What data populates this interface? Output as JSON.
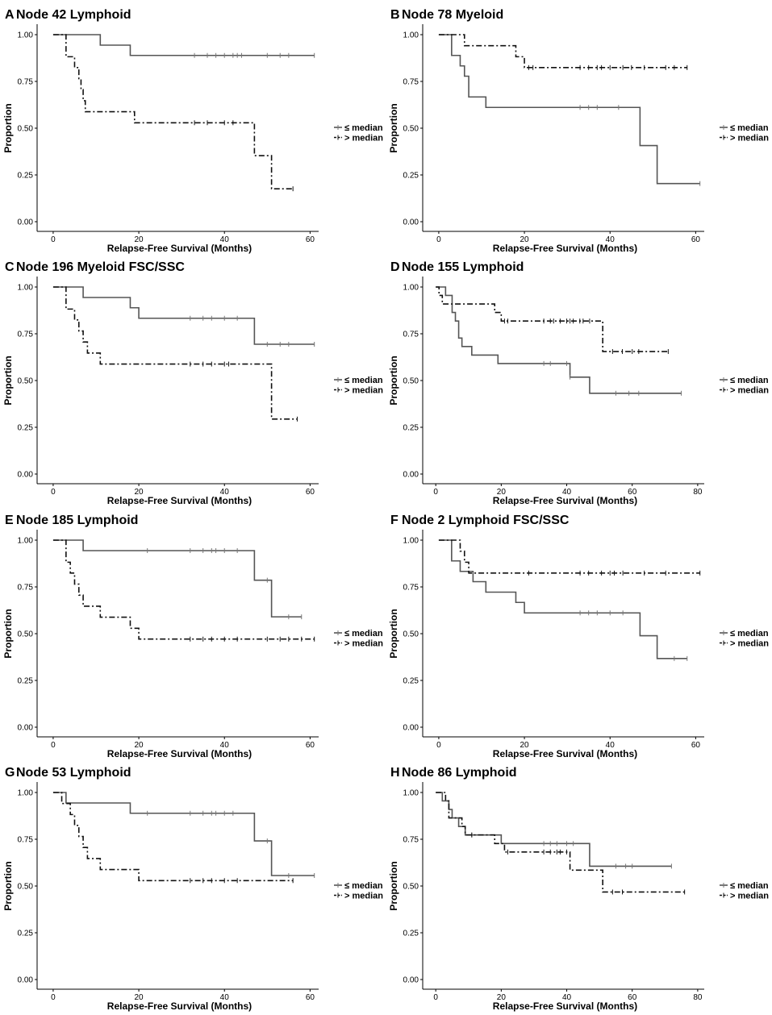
{
  "chart_data": [
    {
      "type": "line",
      "panel": "A",
      "title": "Node 42 Lymphoid",
      "xlabel": "Relapse-Free Survival (Months)",
      "ylabel": "Proportion",
      "xlim": [
        -3,
        62
      ],
      "xticks": [
        0,
        20,
        40,
        60
      ],
      "ylim": [
        0,
        1
      ],
      "yticks": [
        "0.00",
        "0.25",
        "0.50",
        "0.75",
        "1.00"
      ],
      "legend": [
        "≤ median",
        "> median"
      ],
      "series": [
        {
          "name": "≤ median",
          "steps": [
            [
              0,
              1.0
            ],
            [
              11,
              0.944
            ],
            [
              18,
              0.889
            ],
            [
              61,
              0.889
            ]
          ],
          "censors": [
            33,
            36,
            38,
            40,
            42,
            43,
            44,
            50,
            53,
            55,
            61
          ]
        },
        {
          "name": "> median",
          "steps": [
            [
              0,
              1.0
            ],
            [
              3,
              0.882
            ],
            [
              5,
              0.824
            ],
            [
              6,
              0.765
            ],
            [
              6.5,
              0.706
            ],
            [
              7,
              0.647
            ],
            [
              7.5,
              0.588
            ],
            [
              19,
              0.529
            ],
            [
              47,
              0.353
            ],
            [
              51,
              0.176
            ],
            [
              56,
              0.176
            ]
          ],
          "censors": [
            33,
            36,
            40,
            42,
            56
          ]
        }
      ]
    },
    {
      "type": "line",
      "panel": "B",
      "title": "Node 78 Myeloid",
      "xlabel": "Relapse-Free Survival (Months)",
      "ylabel": "Proportion",
      "xlim": [
        -3,
        62
      ],
      "xticks": [
        0,
        20,
        40,
        60
      ],
      "ylim": [
        0,
        1
      ],
      "yticks": [
        "0.00",
        "0.25",
        "0.50",
        "0.75",
        "1.00"
      ],
      "legend": [
        "≤ median",
        "> median"
      ],
      "series": [
        {
          "name": "≤ median",
          "steps": [
            [
              0,
              1.0
            ],
            [
              3,
              0.889
            ],
            [
              5,
              0.833
            ],
            [
              6,
              0.778
            ],
            [
              7,
              0.667
            ],
            [
              11,
              0.611
            ],
            [
              47,
              0.407
            ],
            [
              51,
              0.204
            ],
            [
              61,
              0.204
            ]
          ],
          "censors": [
            33,
            35,
            37,
            42,
            61
          ]
        },
        {
          "name": "> median",
          "steps": [
            [
              0,
              1.0
            ],
            [
              6,
              0.941
            ],
            [
              18,
              0.882
            ],
            [
              20,
              0.824
            ],
            [
              58,
              0.824
            ]
          ],
          "censors": [
            21,
            22,
            33,
            35,
            37,
            38,
            40,
            43,
            45,
            48,
            53,
            55,
            58
          ]
        }
      ]
    },
    {
      "type": "line",
      "panel": "C",
      "title": "Node 196 Myeloid FSC/SSC",
      "xlabel": "Relapse-Free Survival (Months)",
      "ylabel": "Proportion",
      "xlim": [
        -3,
        62
      ],
      "xticks": [
        0,
        20,
        40,
        60
      ],
      "ylim": [
        0,
        1
      ],
      "yticks": [
        "0.00",
        "0.25",
        "0.50",
        "0.75",
        "1.00"
      ],
      "legend": [
        "≤ median",
        "> median"
      ],
      "series": [
        {
          "name": "≤ median",
          "steps": [
            [
              0,
              1.0
            ],
            [
              7,
              0.944
            ],
            [
              18,
              0.889
            ],
            [
              20,
              0.833
            ],
            [
              47,
              0.694
            ],
            [
              61,
              0.694
            ]
          ],
          "censors": [
            32,
            35,
            37,
            40,
            43,
            50,
            53,
            55,
            61
          ]
        },
        {
          "name": "> median",
          "steps": [
            [
              0,
              1.0
            ],
            [
              3,
              0.882
            ],
            [
              5,
              0.824
            ],
            [
              6,
              0.765
            ],
            [
              7,
              0.706
            ],
            [
              8,
              0.647
            ],
            [
              11,
              0.588
            ],
            [
              51,
              0.294
            ],
            [
              57,
              0.294
            ]
          ],
          "censors": [
            32,
            35,
            37,
            40,
            41,
            57
          ]
        }
      ]
    },
    {
      "type": "line",
      "panel": "D",
      "title": "Node 155 Lymphoid",
      "xlabel": "Relapse-Free Survival (Months)",
      "ylabel": "Proportion",
      "xlim": [
        -3,
        82
      ],
      "xticks": [
        0,
        20,
        40,
        60,
        80
      ],
      "ylim": [
        0,
        1
      ],
      "yticks": [
        "0.00",
        "0.25",
        "0.50",
        "0.75",
        "1.00"
      ],
      "legend": [
        "≤ median",
        "> median"
      ],
      "series": [
        {
          "name": "≤ median",
          "steps": [
            [
              0,
              1.0
            ],
            [
              3,
              0.955
            ],
            [
              5,
              0.864
            ],
            [
              6,
              0.818
            ],
            [
              7,
              0.727
            ],
            [
              8,
              0.682
            ],
            [
              11,
              0.636
            ],
            [
              19,
              0.591
            ],
            [
              41,
              0.518
            ],
            [
              47,
              0.432
            ],
            [
              75,
              0.432
            ]
          ],
          "censors": [
            33,
            35,
            40,
            41,
            55,
            59,
            62,
            75
          ]
        },
        {
          "name": "> median",
          "steps": [
            [
              0,
              1.0
            ],
            [
              1,
              0.955
            ],
            [
              2,
              0.909
            ],
            [
              18,
              0.864
            ],
            [
              20,
              0.818
            ],
            [
              51,
              0.655
            ],
            [
              71,
              0.655
            ]
          ],
          "censors": [
            21,
            22,
            33,
            35,
            36,
            38,
            40,
            41,
            42,
            44,
            45,
            47,
            54,
            57,
            60,
            62,
            71
          ]
        }
      ]
    },
    {
      "type": "line",
      "panel": "E",
      "title": "Node 185 Lymphoid",
      "xlabel": "Relapse-Free Survival (Months)",
      "ylabel": "Proportion",
      "xlim": [
        -3,
        62
      ],
      "xticks": [
        0,
        20,
        40,
        60
      ],
      "ylim": [
        0,
        1
      ],
      "yticks": [
        "0.00",
        "0.25",
        "0.50",
        "0.75",
        "1.00"
      ],
      "legend": [
        "≤ median",
        "> median"
      ],
      "series": [
        {
          "name": "≤ median",
          "steps": [
            [
              0,
              1.0
            ],
            [
              7,
              0.944
            ],
            [
              47,
              0.786
            ],
            [
              51,
              0.59
            ],
            [
              58,
              0.59
            ]
          ],
          "censors": [
            22,
            32,
            35,
            37,
            38,
            40,
            43,
            50,
            55,
            58
          ]
        },
        {
          "name": "> median",
          "steps": [
            [
              0,
              1.0
            ],
            [
              3,
              0.882
            ],
            [
              4,
              0.824
            ],
            [
              5,
              0.765
            ],
            [
              6,
              0.706
            ],
            [
              7,
              0.647
            ],
            [
              11,
              0.588
            ],
            [
              18,
              0.529
            ],
            [
              20,
              0.471
            ],
            [
              61,
              0.471
            ]
          ],
          "censors": [
            32,
            35,
            37,
            40,
            43,
            50,
            53,
            55,
            58,
            61
          ]
        }
      ]
    },
    {
      "type": "line",
      "panel": "F",
      "title": "Node 2 Lymphoid FSC/SSC",
      "xlabel": "Relapse-Free Survival (Months)",
      "ylabel": "Proportion",
      "xlim": [
        -3,
        62
      ],
      "xticks": [
        0,
        20,
        40,
        60
      ],
      "ylim": [
        0,
        1
      ],
      "yticks": [
        "0.00",
        "0.25",
        "0.50",
        "0.75",
        "1.00"
      ],
      "legend": [
        "≤ median",
        "> median"
      ],
      "series": [
        {
          "name": "≤ median",
          "steps": [
            [
              0,
              1.0
            ],
            [
              3,
              0.889
            ],
            [
              5,
              0.833
            ],
            [
              8,
              0.778
            ],
            [
              11,
              0.722
            ],
            [
              18,
              0.667
            ],
            [
              20,
              0.611
            ],
            [
              47,
              0.489
            ],
            [
              51,
              0.367
            ],
            [
              58,
              0.367
            ]
          ],
          "censors": [
            33,
            35,
            37,
            40,
            43,
            55,
            58
          ]
        },
        {
          "name": "> median",
          "steps": [
            [
              0,
              1.0
            ],
            [
              5,
              0.941
            ],
            [
              6,
              0.882
            ],
            [
              7,
              0.824
            ],
            [
              61,
              0.824
            ]
          ],
          "censors": [
            21,
            33,
            35,
            38,
            40,
            41,
            43,
            48,
            53,
            61
          ]
        }
      ]
    },
    {
      "type": "line",
      "panel": "G",
      "title": "Node  53 Lymphoid",
      "xlabel": "Relapse-Free Survival (Months)",
      "ylabel": "Proportion",
      "xlim": [
        -3,
        62
      ],
      "xticks": [
        0,
        20,
        40,
        60
      ],
      "ylim": [
        0,
        1
      ],
      "yticks": [
        "0.00",
        "0.25",
        "0.50",
        "0.75",
        "1.00"
      ],
      "legend": [
        "≤ median",
        "> median"
      ],
      "series": [
        {
          "name": "≤ median",
          "steps": [
            [
              0,
              1.0
            ],
            [
              3,
              0.944
            ],
            [
              18,
              0.889
            ],
            [
              47,
              0.741
            ],
            [
              51,
              0.556
            ],
            [
              61,
              0.556
            ]
          ],
          "censors": [
            22,
            32,
            35,
            37,
            38,
            40,
            42,
            50,
            55,
            61
          ]
        },
        {
          "name": "> median",
          "steps": [
            [
              0,
              1.0
            ],
            [
              2,
              0.941
            ],
            [
              4,
              0.882
            ],
            [
              5,
              0.824
            ],
            [
              6,
              0.765
            ],
            [
              7,
              0.706
            ],
            [
              8,
              0.647
            ],
            [
              11,
              0.588
            ],
            [
              20,
              0.529
            ],
            [
              56,
              0.529
            ]
          ],
          "censors": [
            32,
            35,
            37,
            40,
            43,
            56
          ]
        }
      ]
    },
    {
      "type": "line",
      "panel": "H",
      "title": "Node 86 Lymphoid",
      "xlabel": "Relapse-Free Survival (Months)",
      "ylabel": "Proportion",
      "xlim": [
        -3,
        82
      ],
      "xticks": [
        0,
        20,
        40,
        60,
        80
      ],
      "ylim": [
        0,
        1
      ],
      "yticks": [
        "0.00",
        "0.25",
        "0.50",
        "0.75",
        "1.00"
      ],
      "legend": [
        "≤ median",
        "> median"
      ],
      "series": [
        {
          "name": "≤ median",
          "steps": [
            [
              0,
              1.0
            ],
            [
              2,
              0.955
            ],
            [
              4,
              0.909
            ],
            [
              5,
              0.864
            ],
            [
              7,
              0.818
            ],
            [
              9,
              0.773
            ],
            [
              20,
              0.727
            ],
            [
              47,
              0.606
            ],
            [
              72,
              0.606
            ]
          ],
          "censors": [
            11,
            33,
            35,
            37,
            40,
            42,
            55,
            58,
            60,
            72
          ]
        },
        {
          "name": "> median",
          "steps": [
            [
              0,
              1.0
            ],
            [
              3,
              0.955
            ],
            [
              4,
              0.864
            ],
            [
              8,
              0.818
            ],
            [
              9,
              0.773
            ],
            [
              18,
              0.727
            ],
            [
              21,
              0.682
            ],
            [
              41,
              0.585
            ],
            [
              51,
              0.468
            ],
            [
              76,
              0.468
            ]
          ],
          "censors": [
            11,
            22,
            33,
            35,
            37,
            38,
            40,
            54,
            57,
            76
          ]
        }
      ]
    }
  ]
}
